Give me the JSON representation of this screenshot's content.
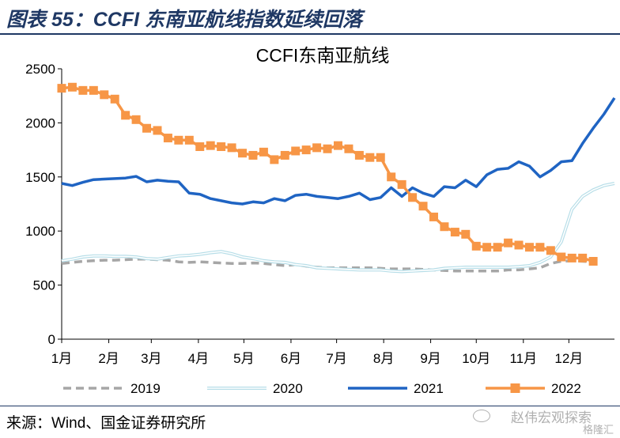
{
  "figure": {
    "title": "图表 55：CCFI 东南亚航线指数延续回落",
    "source": "来源：Wind、国金证券研究所",
    "watermark": "赵伟宏观探索",
    "watermark_sub": "格隆汇",
    "watermark_icon": "wechat-icon"
  },
  "colors": {
    "s2019": "#a6a6a6",
    "s2020": "#b7dee8",
    "s2021": "#1f64c3",
    "s2022": "#f79646",
    "header_rule": "#1f3864"
  },
  "chart_data": {
    "type": "line",
    "title": "CCFI东南亚航线",
    "xlabel": "",
    "ylabel": "",
    "ylim": [
      0,
      2500
    ],
    "yticks": [
      0,
      500,
      1000,
      1500,
      2000,
      2500
    ],
    "xlim": [
      0,
      52
    ],
    "xticks": [
      {
        "label": "1月",
        "x": 0
      },
      {
        "label": "2月",
        "x": 4.43
      },
      {
        "label": "3月",
        "x": 8.43
      },
      {
        "label": "4月",
        "x": 12.86
      },
      {
        "label": "5月",
        "x": 17.14
      },
      {
        "label": "6月",
        "x": 21.57
      },
      {
        "label": "7月",
        "x": 25.86
      },
      {
        "label": "8月",
        "x": 30.29
      },
      {
        "label": "9月",
        "x": 34.71
      },
      {
        "label": "10月",
        "x": 39
      },
      {
        "label": "11月",
        "x": 43.43
      },
      {
        "label": "12月",
        "x": 47.71
      }
    ],
    "grid": false,
    "legend": "bottom",
    "series": [
      {
        "name": "2019",
        "style": "dashed",
        "x": [
          0,
          1,
          2,
          3,
          4,
          5,
          6,
          7,
          8,
          9,
          10,
          11,
          12,
          13,
          14,
          15,
          16,
          17,
          18,
          19,
          20,
          21,
          22,
          23,
          24,
          25,
          26,
          27,
          28,
          29,
          30,
          31,
          32,
          33,
          34,
          35,
          36,
          37,
          38,
          39,
          40,
          41,
          42,
          43,
          44,
          45,
          46,
          47,
          48,
          49,
          50
        ],
        "values": [
          700,
          710,
          720,
          725,
          730,
          730,
          735,
          740,
          740,
          735,
          730,
          715,
          710,
          715,
          710,
          705,
          700,
          700,
          705,
          700,
          690,
          680,
          690,
          675,
          665,
          660,
          660,
          660,
          660,
          660,
          655,
          650,
          650,
          650,
          645,
          640,
          635,
          630,
          630,
          630,
          630,
          630,
          640,
          640,
          650,
          660,
          700,
          720,
          725,
          720,
          715
        ]
      },
      {
        "name": "2020",
        "style": "double",
        "x": [
          0,
          1,
          2,
          3,
          4,
          5,
          6,
          7,
          8,
          9,
          10,
          11,
          12,
          13,
          14,
          15,
          16,
          17,
          18,
          19,
          20,
          21,
          22,
          23,
          24,
          25,
          26,
          27,
          28,
          29,
          30,
          31,
          32,
          33,
          34,
          35,
          36,
          37,
          38,
          39,
          40,
          41,
          42,
          43,
          44,
          45,
          46,
          47,
          48,
          49,
          50,
          51,
          52
        ],
        "values": [
          725,
          740,
          760,
          770,
          770,
          765,
          765,
          760,
          745,
          740,
          755,
          770,
          775,
          785,
          800,
          810,
          790,
          760,
          745,
          725,
          715,
          710,
          690,
          680,
          660,
          655,
          650,
          645,
          640,
          640,
          640,
          630,
          625,
          630,
          635,
          640,
          655,
          660,
          665,
          665,
          665,
          665,
          665,
          670,
          680,
          710,
          760,
          900,
          1200,
          1320,
          1380,
          1420,
          1440
        ]
      },
      {
        "name": "2021",
        "style": "solid",
        "x": [
          0,
          1,
          2,
          3,
          4,
          5,
          6,
          7,
          8,
          9,
          10,
          11,
          12,
          13,
          14,
          15,
          16,
          17,
          18,
          19,
          20,
          21,
          22,
          23,
          24,
          25,
          26,
          27,
          28,
          29,
          30,
          31,
          32,
          33,
          34,
          35,
          36,
          37,
          38,
          39,
          40,
          41,
          42,
          43,
          44,
          45,
          46,
          47,
          48,
          49,
          50,
          51,
          52
        ],
        "values": [
          1440,
          1420,
          1450,
          1475,
          1480,
          1485,
          1490,
          1505,
          1455,
          1470,
          1460,
          1455,
          1350,
          1340,
          1300,
          1280,
          1260,
          1250,
          1270,
          1260,
          1300,
          1280,
          1330,
          1340,
          1320,
          1310,
          1300,
          1320,
          1350,
          1290,
          1310,
          1400,
          1320,
          1400,
          1350,
          1320,
          1410,
          1400,
          1470,
          1410,
          1520,
          1570,
          1580,
          1640,
          1600,
          1500,
          1560,
          1640,
          1650,
          1810,
          1950,
          2080,
          2230
        ]
      },
      {
        "name": "2022",
        "style": "marker",
        "x": [
          0,
          1,
          2,
          3,
          4,
          5,
          6,
          7,
          8,
          9,
          10,
          11,
          12,
          13,
          14,
          15,
          16,
          17,
          18,
          19,
          20,
          21,
          22,
          23,
          24,
          25,
          26,
          27,
          28,
          29,
          30,
          31,
          32,
          33,
          34,
          35,
          36,
          37,
          38,
          39,
          40,
          41,
          42,
          43,
          44,
          45,
          46,
          47,
          48,
          49,
          50
        ],
        "values": [
          2320,
          2330,
          2300,
          2300,
          2260,
          2220,
          2070,
          2030,
          1950,
          1930,
          1860,
          1840,
          1840,
          1780,
          1790,
          1780,
          1770,
          1720,
          1700,
          1730,
          1660,
          1700,
          1740,
          1750,
          1770,
          1760,
          1790,
          1760,
          1700,
          1680,
          1680,
          1500,
          1430,
          1310,
          1230,
          1130,
          1040,
          990,
          970,
          860,
          850,
          850,
          890,
          870,
          850,
          850,
          820,
          760,
          750,
          750,
          720
        ]
      }
    ]
  }
}
